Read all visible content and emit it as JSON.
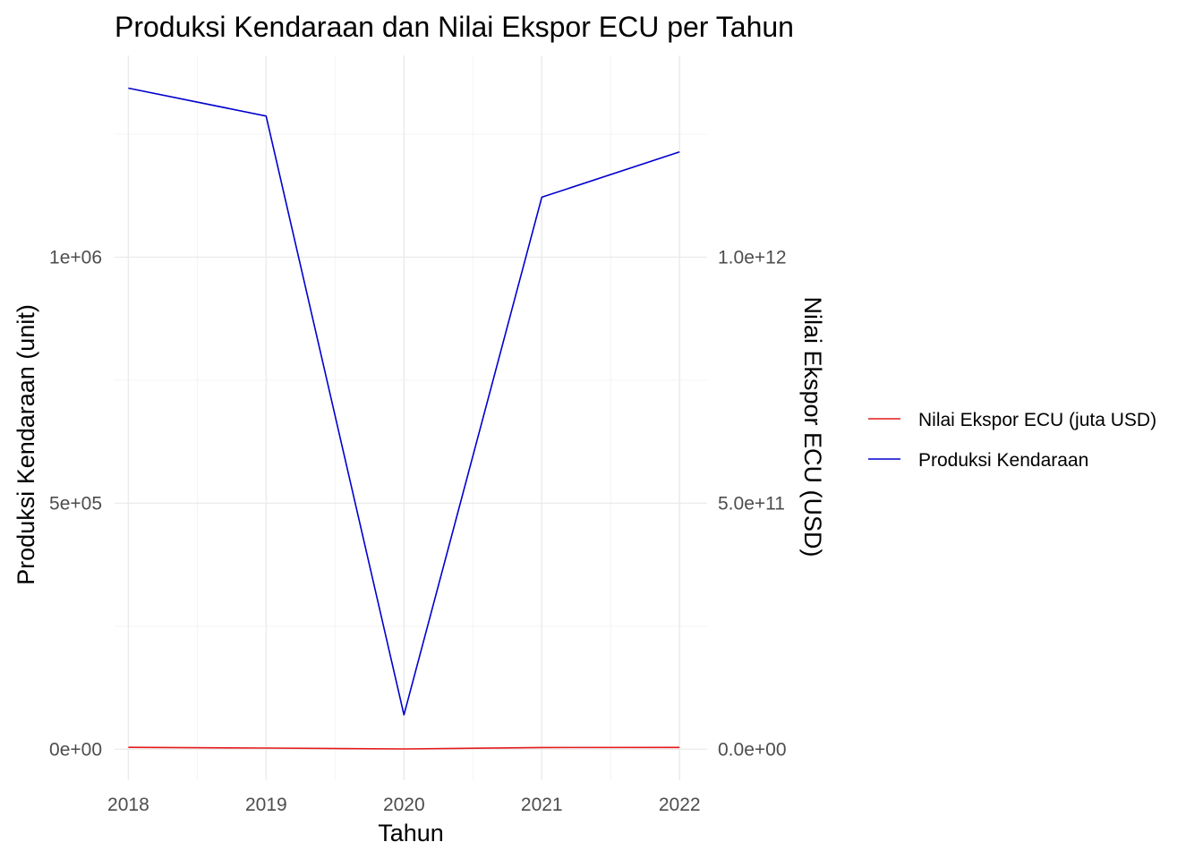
{
  "chart_data": {
    "type": "line",
    "title": "Produksi Kendaraan dan Nilai Ekspor ECU per Tahun",
    "xlabel": "Tahun",
    "ylabel": "Produksi Kendaraan (unit)",
    "y2label": "Nilai Ekspor ECU (USD)",
    "x": [
      2018,
      2019,
      2020,
      2021,
      2022
    ],
    "x_tick_labels": [
      "2018",
      "2019",
      "2020",
      "2021",
      "2022"
    ],
    "xlim": [
      2017.9,
      2022.2
    ],
    "ylim": [
      -63000,
      1410000
    ],
    "y_ticks": [
      0,
      500000,
      1000000
    ],
    "y_tick_labels": [
      "0e+00",
      "5e+05",
      "1e+06"
    ],
    "y_minor_ticks": [
      250000,
      750000,
      1250000
    ],
    "y2_ticks": [
      0,
      500000000000,
      1000000000000
    ],
    "y2_tick_labels": [
      "0.0e+00",
      "5.0e+11",
      "1.0e+12"
    ],
    "grid": true,
    "legend_position": "right",
    "series": [
      {
        "name": "Nilai Ekspor ECU (juta USD)",
        "color": "#e41a1c",
        "axis": "right",
        "values": [
          4000,
          2500,
          700,
          3500,
          3800
        ]
      },
      {
        "name": "Produksi Kendaraan",
        "color": "#0000cd",
        "axis": "left",
        "values": [
          1343714,
          1286848,
          70000,
          1121967,
          1214000
        ]
      }
    ]
  }
}
